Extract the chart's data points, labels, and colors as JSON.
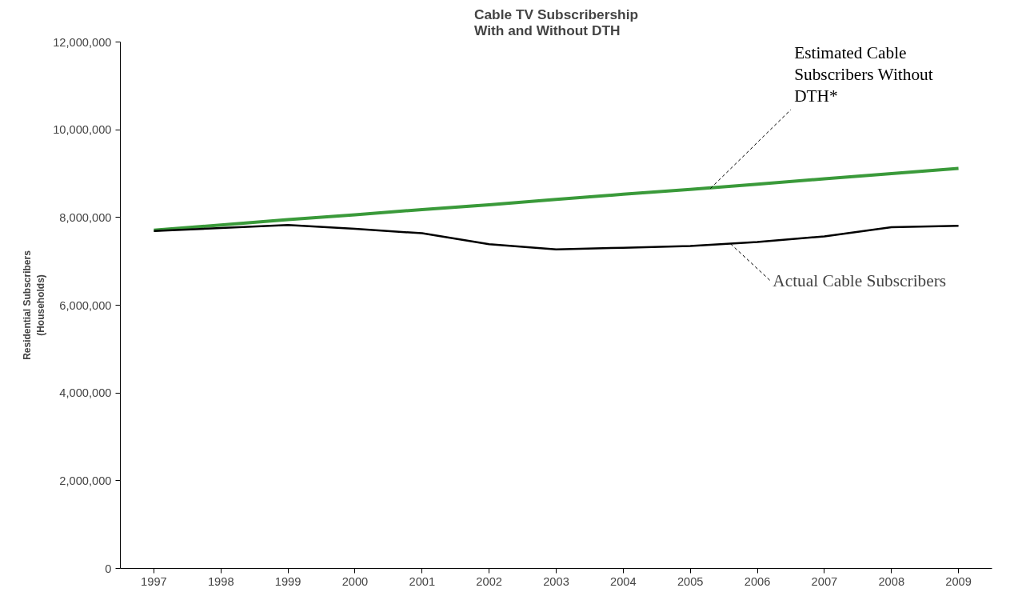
{
  "chart_data": {
    "type": "line",
    "title": "Cable TV Subscribership\nWith and Without DTH",
    "ylabel": "Residential Subscribers\n(Households)",
    "x": [
      1997,
      1998,
      1999,
      2000,
      2001,
      2002,
      2003,
      2004,
      2005,
      2006,
      2007,
      2008,
      2009
    ],
    "xlim": [
      1996.5,
      2009.5
    ],
    "xticks": [
      1997,
      1998,
      1999,
      2000,
      2001,
      2002,
      2003,
      2004,
      2005,
      2006,
      2007,
      2008,
      2009
    ],
    "ylim": [
      0,
      12000000
    ],
    "yticks": [
      {
        "value": 0,
        "label": "0"
      },
      {
        "value": 2000000,
        "label": "2,000,000"
      },
      {
        "value": 4000000,
        "label": "4,000,000"
      },
      {
        "value": 6000000,
        "label": "6,000,000"
      },
      {
        "value": 8000000,
        "label": "8,000,000"
      },
      {
        "value": 10000000,
        "label": "10,000,000"
      },
      {
        "value": 12000000,
        "label": "12,000,000"
      }
    ],
    "series": [
      {
        "color": "#3a9a3a",
        "values": [
          7710000,
          7830000,
          7950000,
          8060000,
          8180000,
          8290000,
          8410000,
          8530000,
          8640000,
          8760000,
          8880000,
          9000000,
          9120000
        ]
      },
      {
        "color": "#000000",
        "values": [
          7690000,
          7760000,
          7830000,
          7740000,
          7640000,
          7390000,
          7270000,
          7310000,
          7350000,
          7440000,
          7570000,
          7780000,
          7810000
        ]
      }
    ],
    "annotations": [
      {
        "text": "Estimated Cable\nSubscribers Without\nDTH*",
        "x": 2005.3,
        "y": 8660000
      },
      {
        "text": "Actual Cable Subscribers",
        "x": 2005.6,
        "y": 7400000
      }
    ],
    "grid": false,
    "marker": "none",
    "line_style": "solid"
  }
}
